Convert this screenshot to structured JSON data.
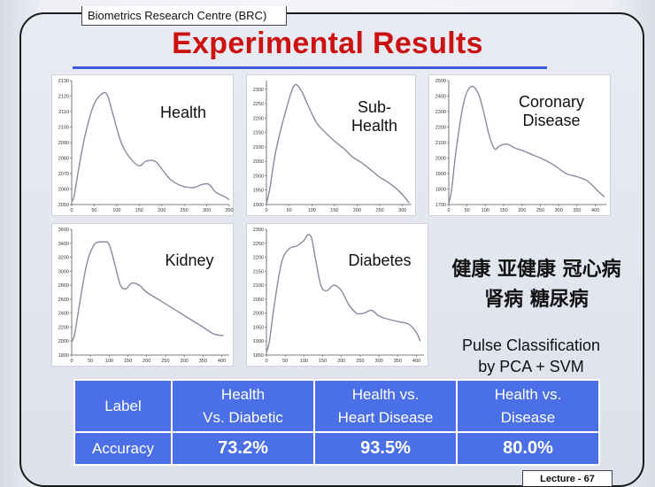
{
  "header": {
    "org": "Biometrics Research Centre (BRC)",
    "title": "Experimental Results"
  },
  "colors": {
    "title": "#cc1111",
    "table": "#4a6fe6",
    "curve": "#8a8aa0"
  },
  "chart_data": [
    {
      "type": "line",
      "label": "Health",
      "x_ticks": [
        "0",
        "50",
        "100",
        "150",
        "200",
        "250",
        "300",
        "350"
      ],
      "y_ticks": [
        "2050",
        "2060",
        "2070",
        "2080",
        "2090",
        "2100",
        "2110",
        "2120",
        "2130"
      ],
      "xlim": [
        0,
        350
      ],
      "ylim": [
        2050,
        2130
      ],
      "x": [
        0,
        5,
        15,
        30,
        50,
        70,
        80,
        90,
        110,
        130,
        150,
        165,
        185,
        200,
        220,
        245,
        270,
        290,
        305,
        320,
        340,
        350
      ],
      "y": [
        2052,
        2055,
        2072,
        2095,
        2115,
        2122,
        2120,
        2110,
        2090,
        2080,
        2075,
        2078,
        2078,
        2073,
        2066,
        2062,
        2061,
        2063,
        2063,
        2058,
        2055,
        2053
      ]
    },
    {
      "type": "line",
      "label": "Sub-Health",
      "x_ticks": [
        "0",
        "50",
        "100",
        "150",
        "200",
        "250",
        "300"
      ],
      "y_ticks": [
        "1900",
        "1950",
        "2000",
        "2050",
        "2100",
        "2150",
        "2200",
        "2250",
        "2300"
      ],
      "xlim": [
        0,
        320
      ],
      "ylim": [
        1900,
        2330
      ],
      "x": [
        0,
        8,
        20,
        40,
        60,
        75,
        90,
        110,
        130,
        150,
        170,
        190,
        210,
        230,
        250,
        270,
        290,
        305,
        315
      ],
      "y": [
        1902,
        1960,
        2080,
        2210,
        2310,
        2300,
        2250,
        2185,
        2150,
        2120,
        2095,
        2065,
        2045,
        2020,
        1995,
        1975,
        1950,
        1925,
        1905
      ]
    },
    {
      "type": "line",
      "label": "Coronary Disease",
      "x_ticks": [
        "0",
        "50",
        "100",
        "150",
        "200",
        "250",
        "300",
        "350",
        "400"
      ],
      "y_ticks": [
        "1700",
        "1800",
        "1900",
        "2000",
        "2100",
        "2200",
        "2300",
        "2400",
        "2500"
      ],
      "xlim": [
        0,
        430
      ],
      "ylim": [
        1700,
        2500
      ],
      "x": [
        0,
        8,
        20,
        40,
        60,
        80,
        95,
        110,
        125,
        140,
        160,
        180,
        200,
        230,
        260,
        290,
        320,
        350,
        380,
        410,
        425
      ],
      "y": [
        1705,
        1800,
        2050,
        2350,
        2460,
        2420,
        2300,
        2150,
        2060,
        2080,
        2090,
        2065,
        2050,
        2020,
        1990,
        1950,
        1900,
        1880,
        1850,
        1780,
        1750
      ]
    },
    {
      "type": "line",
      "label": "Kidney",
      "x_ticks": [
        "0",
        "50",
        "100",
        "150",
        "200",
        "250",
        "300",
        "350",
        "400"
      ],
      "y_ticks": [
        "1800",
        "2000",
        "2200",
        "2400",
        "2600",
        "2800",
        "3000",
        "3200",
        "3400",
        "3600"
      ],
      "xlim": [
        0,
        420
      ],
      "ylim": [
        1800,
        3600
      ],
      "x": [
        0,
        8,
        20,
        40,
        60,
        85,
        100,
        115,
        130,
        145,
        160,
        180,
        200,
        230,
        260,
        290,
        320,
        350,
        380,
        405
      ],
      "y": [
        1990,
        2100,
        2500,
        3100,
        3380,
        3420,
        3380,
        3100,
        2800,
        2750,
        2830,
        2800,
        2700,
        2600,
        2500,
        2400,
        2300,
        2200,
        2100,
        2080
      ]
    },
    {
      "type": "line",
      "label": "Diabetes",
      "x_ticks": [
        "0",
        "50",
        "100",
        "150",
        "200",
        "250",
        "300",
        "350",
        "400"
      ],
      "y_ticks": [
        "1850",
        "1900",
        "1950",
        "2000",
        "2050",
        "2100",
        "2150",
        "2200",
        "2250",
        "2300"
      ],
      "xlim": [
        0,
        420
      ],
      "ylim": [
        1850,
        2300
      ],
      "x": [
        0,
        8,
        20,
        40,
        60,
        80,
        100,
        110,
        120,
        130,
        145,
        160,
        180,
        200,
        220,
        240,
        260,
        280,
        300,
        320,
        350,
        380,
        400,
        410
      ],
      "y": [
        1860,
        1900,
        2020,
        2180,
        2230,
        2240,
        2260,
        2280,
        2270,
        2200,
        2100,
        2080,
        2100,
        2080,
        2030,
        2000,
        2000,
        2010,
        1990,
        1980,
        1970,
        1960,
        1930,
        1900
      ]
    }
  ],
  "side_text": {
    "chinese_line1": "健康 亚健康 冠心病",
    "chinese_line2": "肾病 糖尿病",
    "pulse_line1": "Pulse Classification",
    "pulse_line2": "by PCA + SVM"
  },
  "results_table": {
    "row_label_header": "Label",
    "row_label_accuracy": "Accuracy",
    "columns": [
      {
        "line1": "Health",
        "line2": "Vs. Diabetic",
        "accuracy": "73.2%"
      },
      {
        "line1": "Health vs.",
        "line2": "Heart Disease",
        "accuracy": "93.5%"
      },
      {
        "line1": "Health vs.",
        "line2": "Disease",
        "accuracy": "80.0%"
      }
    ]
  },
  "footer": {
    "lecture": "Lecture - 67"
  }
}
